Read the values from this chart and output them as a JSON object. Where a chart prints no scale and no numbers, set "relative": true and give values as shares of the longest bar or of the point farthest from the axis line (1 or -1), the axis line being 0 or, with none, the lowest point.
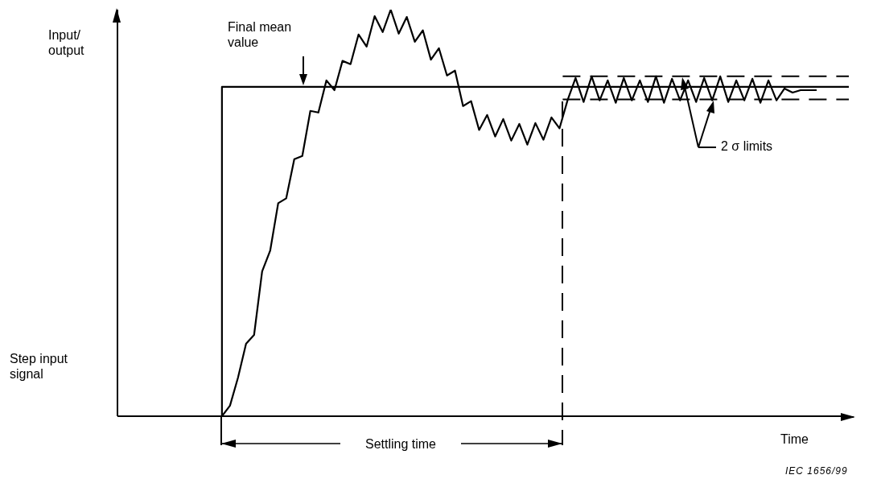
{
  "chart_data": {
    "type": "line",
    "xlabel": "Time",
    "ylabel": "Input/ output",
    "relative": true,
    "line_style": "solid",
    "annotations": [
      "Final mean value",
      "2 σ limits",
      "Settling time",
      "Step input signal",
      "IEC 1656/99"
    ],
    "categories": [
      null,
      null,
      null,
      null,
      null,
      null,
      null,
      null,
      null,
      null,
      null,
      null,
      null,
      null,
      null,
      null,
      null,
      null,
      null,
      null,
      null,
      null,
      null,
      null,
      null,
      null,
      null,
      null,
      null,
      null,
      null,
      null,
      null,
      null,
      null,
      null,
      null,
      null,
      null,
      null,
      null,
      null,
      null,
      null,
      null,
      null,
      null,
      null,
      null,
      null,
      null,
      null,
      null,
      null,
      null,
      null,
      null,
      null,
      null,
      null,
      null,
      null,
      null,
      null,
      null,
      null,
      null,
      null,
      null,
      null,
      null,
      null,
      null,
      null,
      null,
      null,
      null,
      null,
      null,
      null,
      null,
      null,
      null,
      null,
      null,
      null,
      null,
      null,
      null,
      null,
      null,
      null
    ],
    "series": [
      {
        "type": "step",
        "color": "#000000",
        "values": [
          0,
          0,
          0,
          0,
          0,
          0,
          0,
          0,
          0,
          0,
          0,
          0,
          0,
          0.81,
          0.81,
          0.81,
          0.81,
          0.81,
          0.81,
          0.81,
          0.81,
          0.81,
          0.81,
          0.81,
          0.81,
          0.81,
          0.81,
          0.81,
          0.81,
          0.81,
          0.81,
          0.81,
          0.81,
          0.81,
          0.81,
          0.81,
          0.81,
          0.81,
          0.81,
          0.81,
          0.81,
          0.81,
          0.81,
          0.81,
          0.81,
          0.81,
          0.81,
          0.81,
          0.81,
          0.81,
          0.81,
          0.81,
          0.81,
          0.81,
          0.81,
          0.81,
          0.81,
          0.81,
          0.81,
          0.81,
          0.81,
          0.81,
          0.81,
          0.81,
          0.81,
          0.81,
          0.81,
          0.81,
          0.81,
          0.81,
          0.81,
          0.81,
          0.81,
          0.81,
          0.81,
          0.81,
          0.81,
          0.81,
          0.81,
          0.81,
          0.81,
          0.81,
          0.81,
          0.81,
          0.81,
          0.81,
          0.81,
          0.81,
          0.81,
          0.81,
          0.81,
          0.81
        ]
      },
      {
        "color": "#000000",
        "values": [
          null,
          null,
          null,
          null,
          null,
          null,
          null,
          null,
          null,
          null,
          null,
          null,
          null,
          0,
          0.026,
          0.095,
          0.178,
          0.2,
          0.356,
          0.407,
          0.524,
          0.536,
          0.632,
          0.64,
          0.751,
          0.747,
          0.826,
          0.802,
          0.874,
          0.866,
          0.939,
          0.909,
          0.984,
          0.945,
          1,
          0.941,
          0.982,
          0.921,
          0.949,
          0.877,
          0.905,
          0.838,
          0.85,
          0.763,
          0.775,
          0.704,
          0.741,
          0.688,
          0.731,
          0.678,
          0.719,
          0.668,
          0.721,
          0.68,
          0.735,
          0.708,
          0.777,
          0.832,
          0.773,
          0.836,
          0.777,
          0.826,
          0.771,
          0.832,
          0.777,
          0.826,
          0.773,
          0.836,
          0.771,
          0.83,
          0.777,
          0.826,
          0.773,
          0.832,
          0.777,
          0.836,
          0.773,
          0.826,
          0.777,
          0.83,
          0.771,
          0.826,
          0.777,
          0.806,
          0.796,
          0.802,
          0.802,
          0.802,
          null,
          null,
          null,
          null
        ]
      }
    ],
    "ref_lines": [
      {
        "axis": "y",
        "value": 0.836,
        "line_style": "dashed",
        "color": "#000000"
      },
      {
        "axis": "y",
        "value": 0.779,
        "line_style": "dashed",
        "color": "#000000"
      }
    ]
  }
}
